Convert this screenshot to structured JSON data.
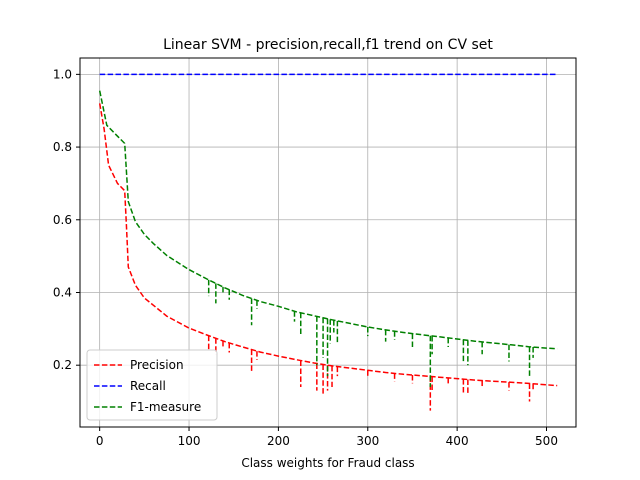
{
  "chart_data": {
    "type": "line",
    "title": "Linear SVM - precision,recall,f1 trend on CV set",
    "xlabel": "Class weights for Fraud class",
    "ylabel": "",
    "xlim": [
      -22,
      533
    ],
    "ylim": [
      0.03,
      1.045
    ],
    "xticks": [
      0,
      100,
      200,
      300,
      400,
      500
    ],
    "yticks": [
      0.2,
      0.4,
      0.6,
      0.8,
      1.0
    ],
    "xtick_labels": [
      "0",
      "100",
      "200",
      "300",
      "400",
      "500"
    ],
    "ytick_labels": [
      "0.2",
      "0.4",
      "0.6",
      "0.8",
      "1.0"
    ],
    "grid": true,
    "legend_position": "lower-left",
    "series": [
      {
        "name": "Precision",
        "color": "#ff0000",
        "style": "dashed",
        "points": [
          [
            0,
            0.92
          ],
          [
            5,
            0.85
          ],
          [
            10,
            0.75
          ],
          [
            20,
            0.7
          ],
          [
            28,
            0.68
          ],
          [
            30,
            0.58
          ],
          [
            32,
            0.47
          ],
          [
            40,
            0.42
          ],
          [
            50,
            0.385
          ],
          [
            60,
            0.365
          ],
          [
            75,
            0.335
          ],
          [
            100,
            0.302
          ],
          [
            120,
            0.283
          ],
          [
            140,
            0.265
          ],
          [
            160,
            0.25
          ],
          [
            180,
            0.236
          ],
          [
            200,
            0.225
          ],
          [
            220,
            0.215
          ],
          [
            240,
            0.206
          ],
          [
            260,
            0.198
          ],
          [
            280,
            0.192
          ],
          [
            300,
            0.186
          ],
          [
            320,
            0.18
          ],
          [
            340,
            0.175
          ],
          [
            360,
            0.171
          ],
          [
            380,
            0.167
          ],
          [
            400,
            0.163
          ],
          [
            420,
            0.159
          ],
          [
            440,
            0.156
          ],
          [
            460,
            0.153
          ],
          [
            480,
            0.15
          ],
          [
            500,
            0.146
          ],
          [
            512,
            0.144
          ]
        ],
        "dips": [
          [
            122,
            0.24
          ],
          [
            130,
            0.23
          ],
          [
            138,
            0.25
          ],
          [
            145,
            0.235
          ],
          [
            170,
            0.18
          ],
          [
            176,
            0.215
          ],
          [
            225,
            0.14
          ],
          [
            243,
            0.13
          ],
          [
            250,
            0.12
          ],
          [
            255,
            0.13
          ],
          [
            260,
            0.14
          ],
          [
            266,
            0.17
          ],
          [
            300,
            0.17
          ],
          [
            330,
            0.155
          ],
          [
            350,
            0.15
          ],
          [
            370,
            0.075
          ],
          [
            372,
            0.13
          ],
          [
            390,
            0.15
          ],
          [
            407,
            0.12
          ],
          [
            412,
            0.12
          ],
          [
            428,
            0.14
          ],
          [
            458,
            0.13
          ],
          [
            481,
            0.1
          ],
          [
            485,
            0.13
          ]
        ]
      },
      {
        "name": "Recall",
        "color": "#0000ff",
        "style": "dashed",
        "points": [
          [
            0,
            1.0
          ],
          [
            512,
            1.0
          ]
        ],
        "dips": []
      },
      {
        "name": "F1-measure",
        "color": "#008000",
        "style": "dashed",
        "points": [
          [
            0,
            0.955
          ],
          [
            3,
            0.92
          ],
          [
            8,
            0.86
          ],
          [
            20,
            0.83
          ],
          [
            28,
            0.81
          ],
          [
            30,
            0.73
          ],
          [
            32,
            0.65
          ],
          [
            40,
            0.595
          ],
          [
            50,
            0.56
          ],
          [
            60,
            0.535
          ],
          [
            75,
            0.502
          ],
          [
            100,
            0.463
          ],
          [
            120,
            0.437
          ],
          [
            140,
            0.413
          ],
          [
            160,
            0.392
          ],
          [
            180,
            0.375
          ],
          [
            200,
            0.362
          ],
          [
            220,
            0.347
          ],
          [
            240,
            0.336
          ],
          [
            260,
            0.325
          ],
          [
            280,
            0.315
          ],
          [
            300,
            0.305
          ],
          [
            320,
            0.297
          ],
          [
            340,
            0.29
          ],
          [
            360,
            0.284
          ],
          [
            380,
            0.278
          ],
          [
            400,
            0.272
          ],
          [
            420,
            0.266
          ],
          [
            440,
            0.261
          ],
          [
            460,
            0.256
          ],
          [
            480,
            0.251
          ],
          [
            500,
            0.247
          ],
          [
            512,
            0.245
          ]
        ],
        "dips": [
          [
            122,
            0.39
          ],
          [
            130,
            0.37
          ],
          [
            138,
            0.395
          ],
          [
            145,
            0.38
          ],
          [
            170,
            0.31
          ],
          [
            176,
            0.355
          ],
          [
            218,
            0.32
          ],
          [
            225,
            0.28
          ],
          [
            243,
            0.2
          ],
          [
            250,
            0.22
          ],
          [
            255,
            0.17
          ],
          [
            258,
            0.26
          ],
          [
            262,
            0.29
          ],
          [
            266,
            0.26
          ],
          [
            300,
            0.28
          ],
          [
            320,
            0.265
          ],
          [
            330,
            0.27
          ],
          [
            350,
            0.25
          ],
          [
            370,
            0.14
          ],
          [
            372,
            0.23
          ],
          [
            390,
            0.25
          ],
          [
            407,
            0.21
          ],
          [
            412,
            0.2
          ],
          [
            428,
            0.23
          ],
          [
            458,
            0.21
          ],
          [
            481,
            0.17
          ],
          [
            485,
            0.22
          ]
        ]
      }
    ]
  }
}
